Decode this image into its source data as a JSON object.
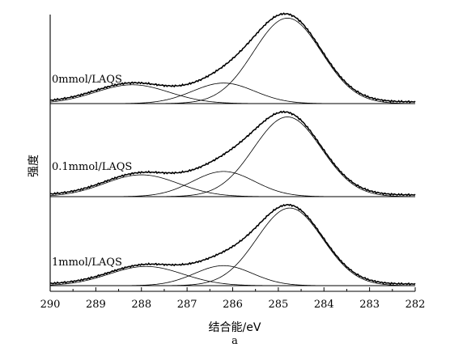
{
  "chart_data": {
    "type": "line",
    "xlabel": "结合能/eV",
    "ylabel": "强度",
    "caption": "a",
    "xlim": [
      290,
      282
    ],
    "x_reversed": true,
    "x_ticks": [
      290,
      289,
      288,
      287,
      286,
      285,
      284,
      283,
      282
    ],
    "panels": [
      {
        "label": "0mmol/LAQS",
        "peaks": [
          {
            "center": 284.8,
            "height": 1.0,
            "fwhm": 1.75
          },
          {
            "center": 286.2,
            "height": 0.24,
            "fwhm": 1.6
          },
          {
            "center": 288.2,
            "height": 0.22,
            "fwhm": 1.9
          }
        ]
      },
      {
        "label": "0.1mmol/LAQS",
        "peaks": [
          {
            "center": 284.8,
            "height": 0.95,
            "fwhm": 1.75
          },
          {
            "center": 286.2,
            "height": 0.3,
            "fwhm": 1.6
          },
          {
            "center": 288.0,
            "height": 0.26,
            "fwhm": 1.9
          }
        ]
      },
      {
        "label": "1mmol/LAQS",
        "peaks": [
          {
            "center": 284.75,
            "height": 0.97,
            "fwhm": 1.7
          },
          {
            "center": 286.2,
            "height": 0.25,
            "fwhm": 1.5
          },
          {
            "center": 287.9,
            "height": 0.24,
            "fwhm": 1.9
          }
        ]
      }
    ]
  }
}
